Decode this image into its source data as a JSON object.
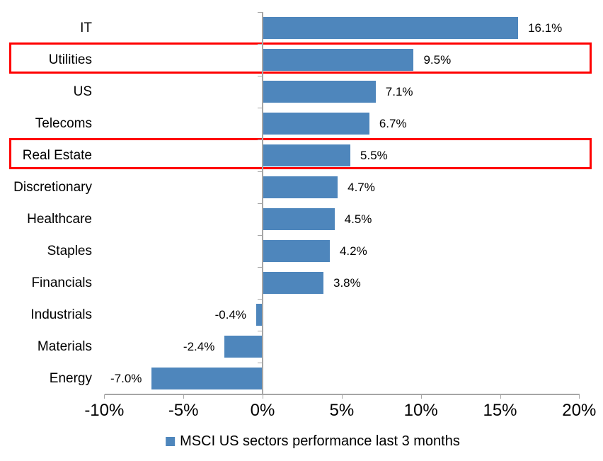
{
  "chart_data": {
    "type": "bar",
    "orientation": "horizontal",
    "title": "",
    "legend": "MSCI US sectors performance last 3 months",
    "legend_position": "bottom",
    "grid": false,
    "xlim": [
      -10,
      20
    ],
    "sectors": [
      {
        "label": "IT",
        "value": 16.1,
        "value_label": "16.1%"
      },
      {
        "label": "Utilities",
        "value": 9.5,
        "value_label": "9.5%"
      },
      {
        "label": "US",
        "value": 7.1,
        "value_label": "7.1%"
      },
      {
        "label": "Telecoms",
        "value": 6.7,
        "value_label": "6.7%"
      },
      {
        "label": "Real Estate",
        "value": 5.5,
        "value_label": "5.5%"
      },
      {
        "label": "Discretionary",
        "value": 4.7,
        "value_label": "4.7%"
      },
      {
        "label": "Healthcare",
        "value": 4.5,
        "value_label": "4.5%"
      },
      {
        "label": "Staples",
        "value": 4.2,
        "value_label": "4.2%"
      },
      {
        "label": "Financials",
        "value": 3.8,
        "value_label": "3.8%"
      },
      {
        "label": "Industrials",
        "value": -0.4,
        "value_label": "-0.4%"
      },
      {
        "label": "Materials",
        "value": -2.4,
        "value_label": "-2.4%"
      },
      {
        "label": "Energy",
        "value": -7.0,
        "value_label": "-7.0%"
      }
    ],
    "x_axis": {
      "ticks": [
        {
          "label": "-10%",
          "value": -10
        },
        {
          "label": "-5%",
          "value": -5
        },
        {
          "label": "0%",
          "value": 0
        },
        {
          "label": "5%",
          "value": 5
        },
        {
          "label": "10%",
          "value": 10
        },
        {
          "label": "15%",
          "value": 15
        },
        {
          "label": "20%",
          "value": 20
        }
      ]
    },
    "highlighted_categories": [
      "Utilities",
      "Real Estate"
    ],
    "colors": {
      "bar": "#4e86bc",
      "highlight": "#ff0000",
      "axis": "#a6a6a6",
      "text": "#000000"
    }
  }
}
